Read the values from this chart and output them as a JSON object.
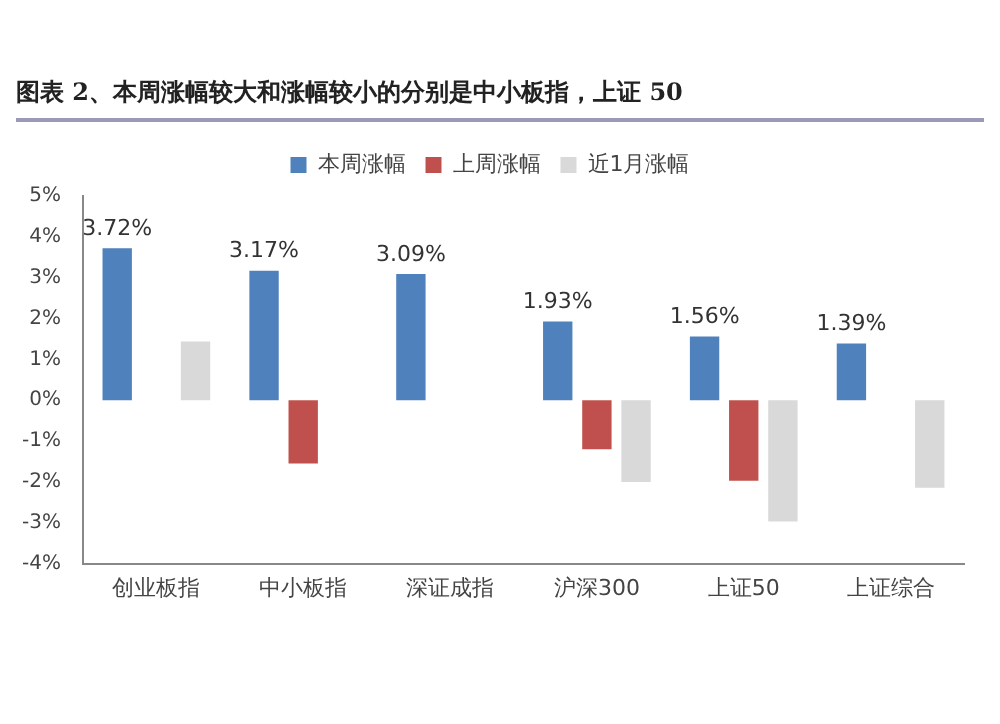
{
  "chart_data": {
    "type": "bar",
    "title": "图表 2、本周涨幅较大和涨幅较小的分别是中小板指，上证 50",
    "categories": [
      "创业板指",
      "中小板指",
      "深证成指",
      "沪深300",
      "上证50",
      "上证综合"
    ],
    "series": [
      {
        "name": "本周涨幅",
        "color": "#4f81bd",
        "values": [
          3.72,
          3.17,
          3.09,
          1.93,
          1.56,
          1.39
        ],
        "value_labels": [
          "3.72%",
          "3.17%",
          "3.09%",
          "1.93%",
          "1.56%",
          "1.39%"
        ]
      },
      {
        "name": "上周涨幅",
        "color": "#c0504d",
        "values": [
          null,
          -1.55,
          null,
          -1.2,
          -1.97,
          null
        ]
      },
      {
        "name": "近1月涨幅",
        "color": "#d9d9d9",
        "values": [
          1.44,
          null,
          null,
          -2.0,
          -2.97,
          -2.14
        ]
      }
    ],
    "ylim": [
      -4,
      5
    ],
    "yticks": [
      {
        "value": -4,
        "label": "-4%"
      },
      {
        "value": -3,
        "label": "-3%"
      },
      {
        "value": -2,
        "label": "-2%"
      },
      {
        "value": -1,
        "label": "-1%"
      },
      {
        "value": 0,
        "label": "0%"
      },
      {
        "value": 1,
        "label": "1%"
      },
      {
        "value": 2,
        "label": "2%"
      },
      {
        "value": 3,
        "label": "3%"
      },
      {
        "value": 4,
        "label": "4%"
      },
      {
        "value": 5,
        "label": "5%"
      }
    ],
    "grid": false,
    "legend": "top"
  }
}
